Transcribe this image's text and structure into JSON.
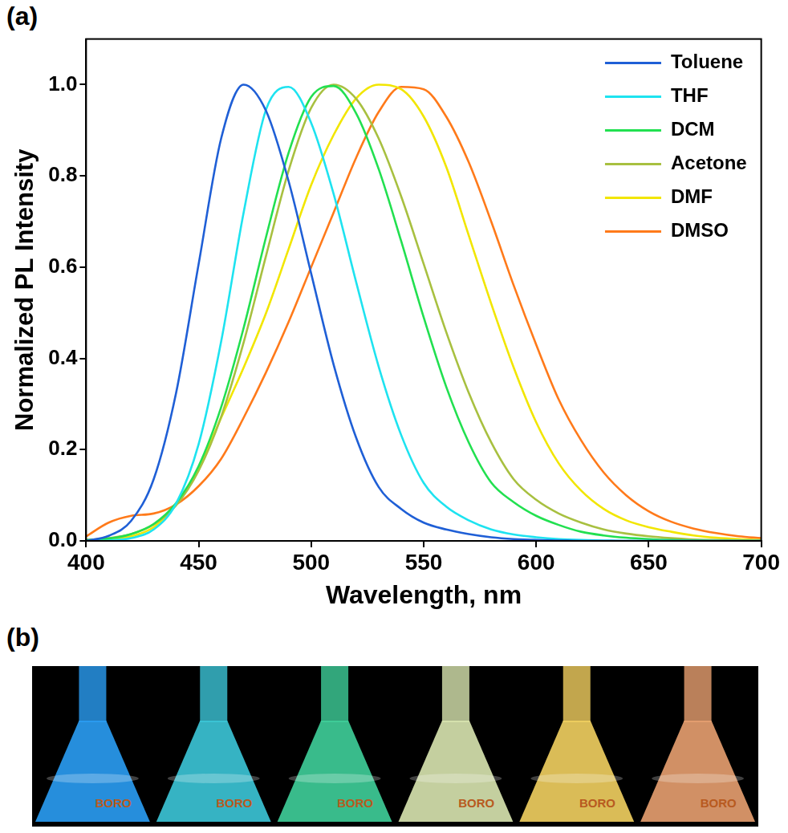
{
  "chart_data": {
    "type": "line",
    "panel_label": "(a)",
    "x_label": "Wavelength, nm",
    "y_label": "Normalized PL Intensity",
    "x": [
      400,
      410,
      420,
      430,
      440,
      450,
      460,
      470,
      480,
      490,
      500,
      510,
      520,
      530,
      540,
      550,
      560,
      570,
      580,
      590,
      600,
      610,
      620,
      630,
      640,
      650,
      660,
      670,
      680,
      690,
      700
    ],
    "series": [
      {
        "name": "Toluene",
        "color": "#1f5fd6",
        "values": [
          0,
          0.011,
          0.044,
          0.135,
          0.325,
          0.607,
          0.882,
          1.0,
          0.942,
          0.788,
          0.586,
          0.386,
          0.226,
          0.118,
          0.07,
          0.04,
          0.025,
          0.015,
          0.008,
          0.004,
          0.002,
          0.001,
          0,
          0,
          0,
          0,
          0,
          0,
          0,
          0,
          0
        ]
      },
      {
        "name": "THF",
        "color": "#1ee3f0",
        "values": [
          0,
          0.001,
          0.006,
          0.025,
          0.082,
          0.212,
          0.437,
          0.72,
          0.946,
          0.995,
          0.916,
          0.76,
          0.567,
          0.382,
          0.232,
          0.127,
          0.075,
          0.045,
          0.025,
          0.014,
          0.008,
          0.004,
          0.002,
          0.001,
          0,
          0,
          0,
          0,
          0,
          0,
          0
        ]
      },
      {
        "name": "DCM",
        "color": "#22e050",
        "values": [
          0.002,
          0.005,
          0.015,
          0.037,
          0.083,
          0.164,
          0.293,
          0.467,
          0.667,
          0.851,
          0.973,
          0.997,
          0.937,
          0.815,
          0.657,
          0.49,
          0.338,
          0.216,
          0.128,
          0.085,
          0.055,
          0.035,
          0.02,
          0.012,
          0.007,
          0.004,
          0.002,
          0.001,
          0,
          0,
          0
        ]
      },
      {
        "name": "Acetone",
        "color": "#a8c040",
        "values": [
          0.002,
          0.006,
          0.015,
          0.036,
          0.078,
          0.154,
          0.272,
          0.435,
          0.626,
          0.812,
          0.949,
          1.0,
          0.969,
          0.882,
          0.755,
          0.607,
          0.458,
          0.325,
          0.216,
          0.135,
          0.09,
          0.06,
          0.04,
          0.025,
          0.016,
          0.01,
          0.006,
          0.003,
          0.002,
          0.001,
          0
        ]
      },
      {
        "name": "DMF",
        "color": "#f2e600",
        "values": [
          0,
          0.003,
          0.01,
          0.03,
          0.08,
          0.16,
          0.27,
          0.38,
          0.5,
          0.64,
          0.78,
          0.89,
          0.97,
          1.0,
          0.99,
          0.93,
          0.82,
          0.67,
          0.52,
          0.38,
          0.26,
          0.17,
          0.11,
          0.07,
          0.045,
          0.03,
          0.02,
          0.012,
          0.007,
          0.004,
          0.002
        ]
      },
      {
        "name": "DMSO",
        "color": "#ff7a1a",
        "values": [
          0.01,
          0.04,
          0.055,
          0.06,
          0.08,
          0.12,
          0.18,
          0.27,
          0.37,
          0.48,
          0.6,
          0.72,
          0.84,
          0.94,
          0.995,
          0.99,
          0.93,
          0.83,
          0.7,
          0.56,
          0.43,
          0.31,
          0.22,
          0.15,
          0.1,
          0.065,
          0.042,
          0.027,
          0.017,
          0.01,
          0.006
        ]
      }
    ],
    "xlim": [
      400,
      700
    ],
    "xticks": [
      400,
      450,
      500,
      550,
      600,
      650,
      700
    ],
    "ylim": [
      0,
      1.1
    ],
    "yticks": [
      {
        "value": 0,
        "label": "0.0"
      },
      {
        "value": 0.2,
        "label": "0.2"
      },
      {
        "value": 0.4,
        "label": "0.4"
      },
      {
        "value": 0.6,
        "label": "0.6"
      },
      {
        "value": 0.8,
        "label": "0.8"
      },
      {
        "value": 1.0,
        "label": "1.0"
      }
    ],
    "grid": false,
    "legend": "upper right"
  },
  "photo": {
    "panel_label": "(b)",
    "flask_text": "BORO",
    "colors": [
      "#2a9df4",
      "#3cc6d8",
      "#3fcf9a",
      "#d9e6b0",
      "#f2d060",
      "#e8a070"
    ]
  }
}
